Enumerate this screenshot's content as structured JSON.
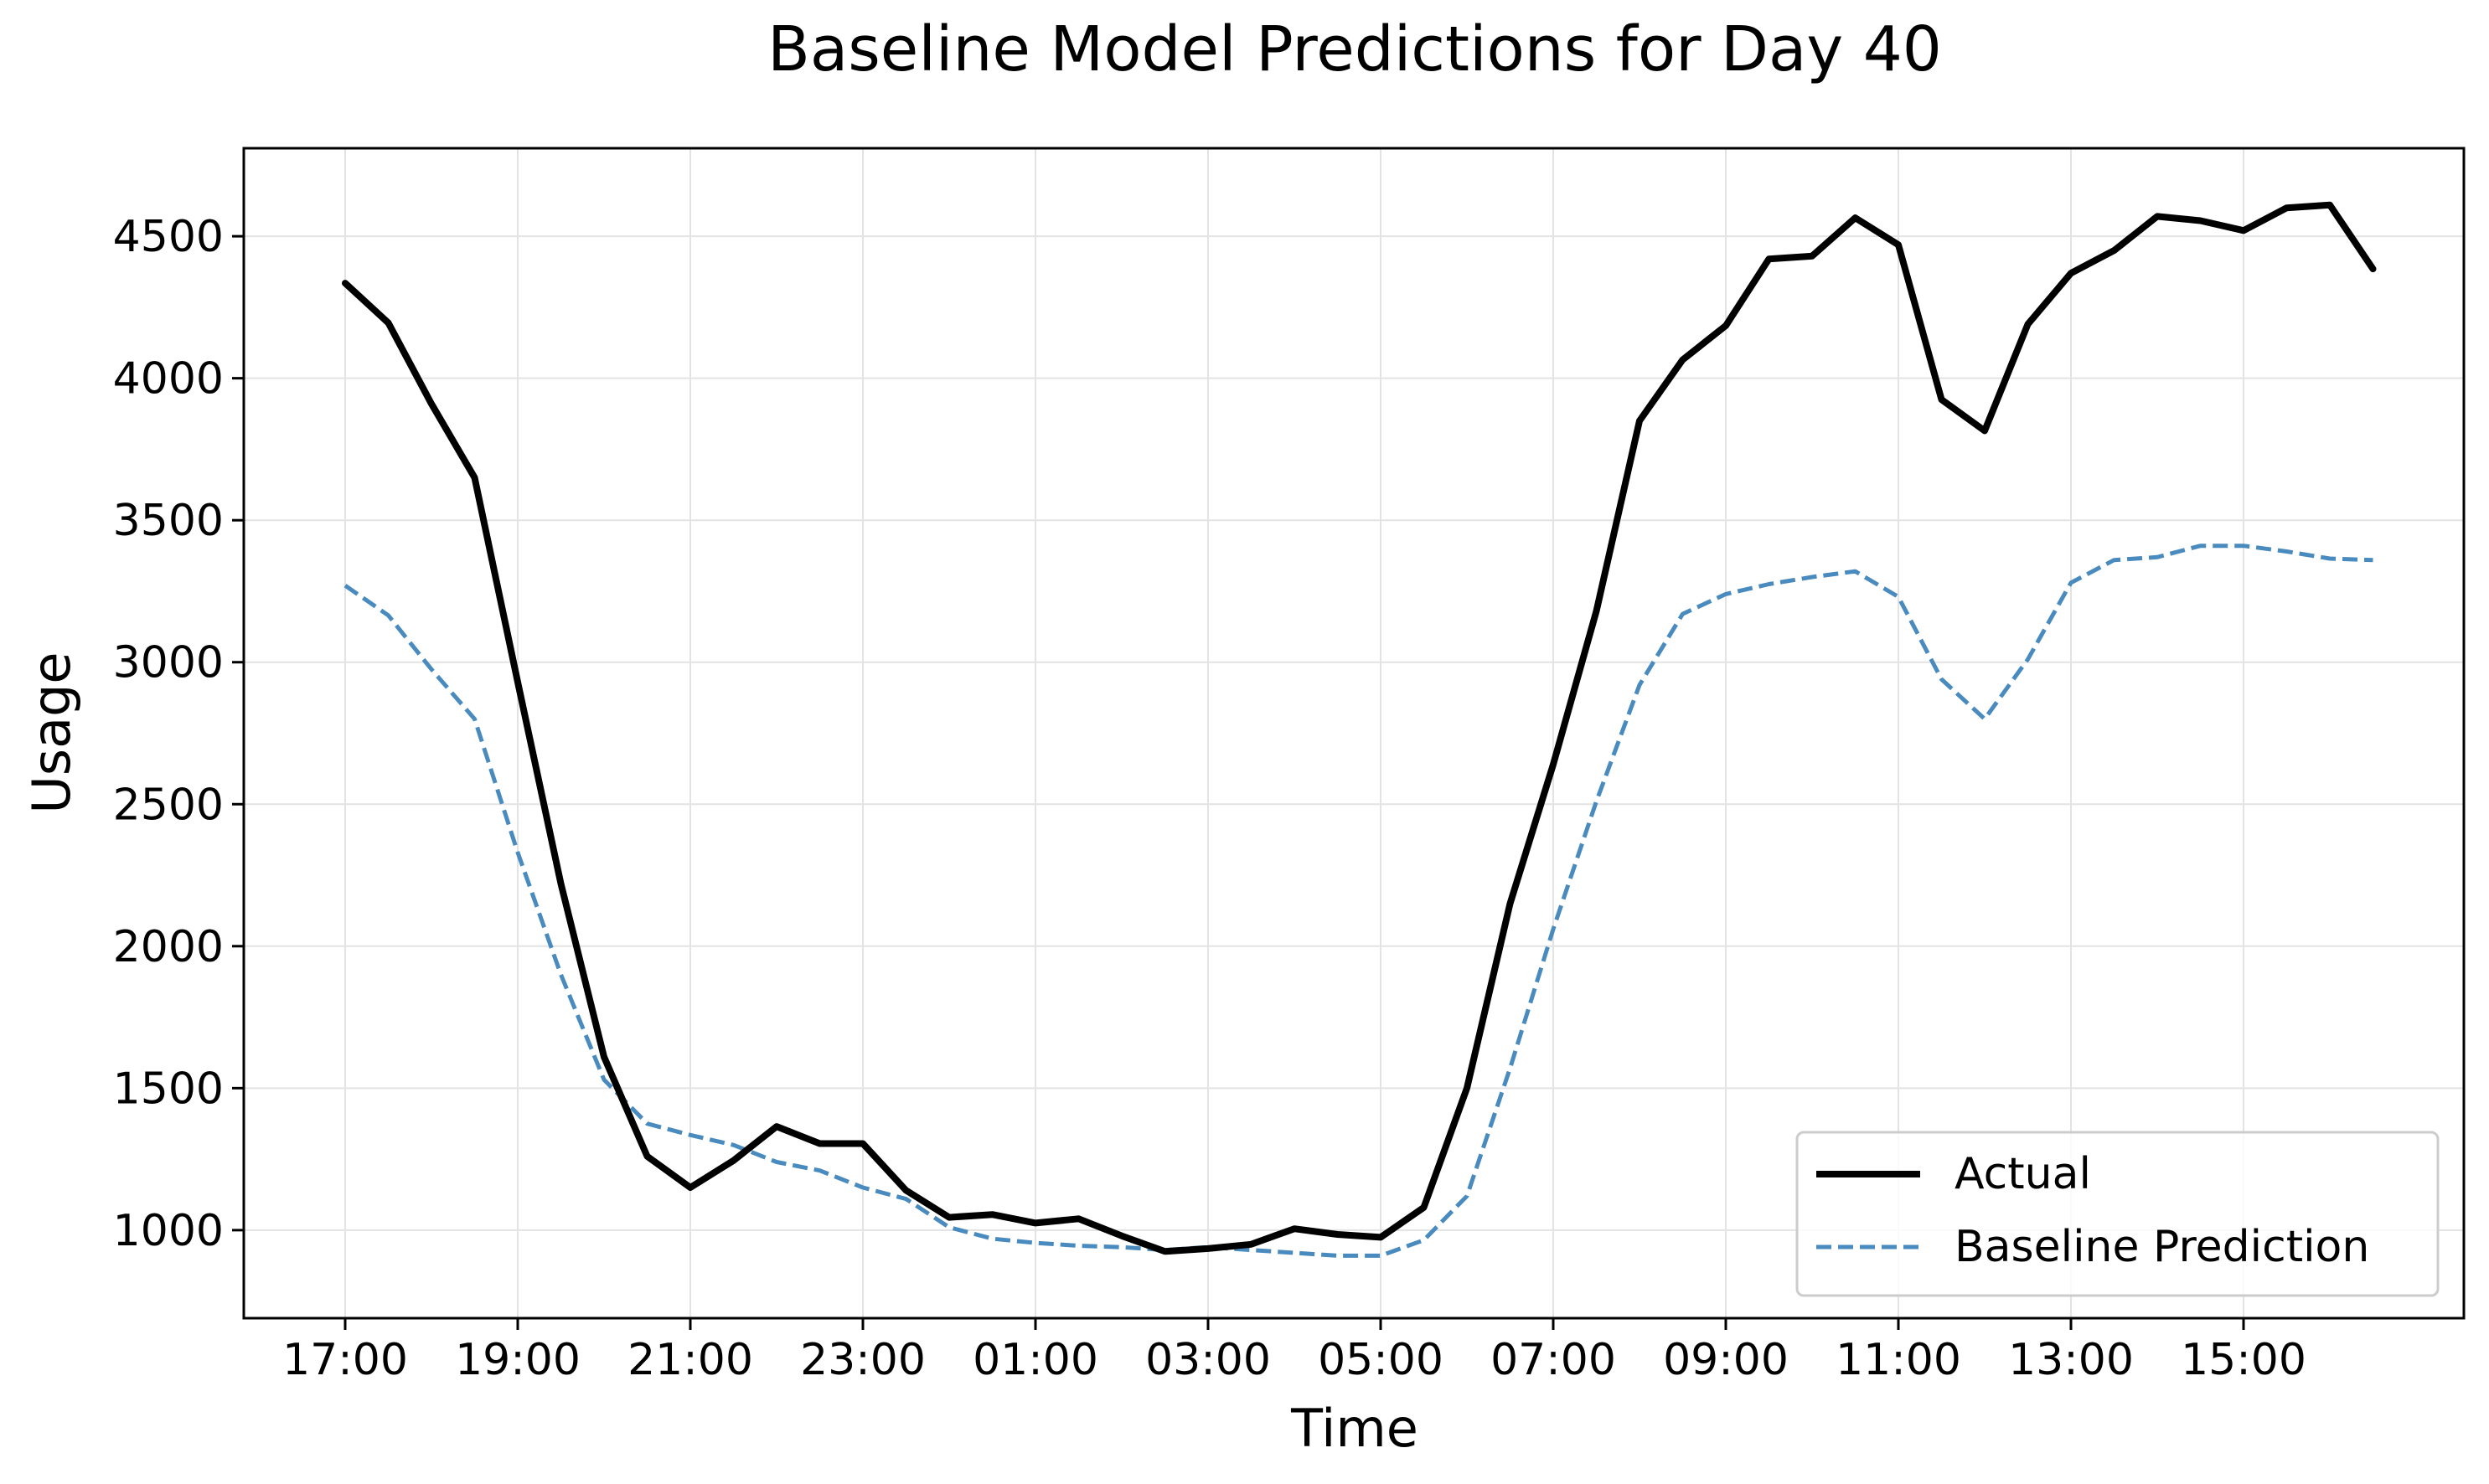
{
  "chart_data": {
    "type": "line",
    "title": "Baseline Model Predictions for Day 40",
    "xlabel": "Time",
    "ylabel": "Usage",
    "x": [
      "17:00",
      "17:30",
      "18:00",
      "18:30",
      "19:00",
      "19:30",
      "20:00",
      "20:30",
      "21:00",
      "21:30",
      "22:00",
      "22:30",
      "23:00",
      "23:30",
      "00:00",
      "00:30",
      "01:00",
      "01:30",
      "02:00",
      "02:30",
      "03:00",
      "03:30",
      "04:00",
      "04:30",
      "05:00",
      "05:30",
      "06:00",
      "06:30",
      "07:00",
      "07:30",
      "08:00",
      "08:30",
      "09:00",
      "09:30",
      "10:00",
      "10:30",
      "11:00",
      "11:30",
      "12:00",
      "12:30",
      "13:00",
      "13:30",
      "14:00",
      "14:30",
      "15:00",
      "15:30",
      "16:00",
      "16:30"
    ],
    "x_ticks": [
      "17:00",
      "19:00",
      "21:00",
      "23:00",
      "01:00",
      "03:00",
      "05:00",
      "07:00",
      "09:00",
      "11:00",
      "13:00",
      "15:00"
    ],
    "y_ticks": [
      1000,
      1500,
      2000,
      2500,
      3000,
      3500,
      4000,
      4500
    ],
    "ylim": [
      690,
      4810
    ],
    "grid": true,
    "legend_position": "lower-right",
    "series": [
      {
        "name": "Actual",
        "color": "#000000",
        "style": "solid",
        "values": [
          4335,
          4195,
          3910,
          3650,
          2930,
          2220,
          1610,
          1260,
          1150,
          1245,
          1365,
          1305,
          1305,
          1140,
          1045,
          1055,
          1025,
          1040,
          980,
          925,
          935,
          950,
          1005,
          985,
          975,
          1080,
          1500,
          2150,
          2640,
          3180,
          3850,
          4065,
          4185,
          4420,
          4430,
          4565,
          4470,
          3925,
          3815,
          4190,
          4370,
          4450,
          4570,
          4555,
          4520,
          4600,
          4610,
          4385
        ]
      },
      {
        "name": "Baseline Prediction",
        "color": "#4a8bbf",
        "style": "dashed",
        "values": [
          3270,
          3165,
          2975,
          2800,
          2330,
          1900,
          1530,
          1375,
          1335,
          1300,
          1240,
          1210,
          1150,
          1110,
          1010,
          970,
          955,
          945,
          940,
          930,
          940,
          930,
          920,
          910,
          910,
          965,
          1120,
          1570,
          2060,
          2510,
          2920,
          3170,
          3240,
          3275,
          3300,
          3320,
          3230,
          2940,
          2800,
          3010,
          3280,
          3360,
          3370,
          3410,
          3410,
          3390,
          3365,
          3360
        ]
      }
    ]
  }
}
